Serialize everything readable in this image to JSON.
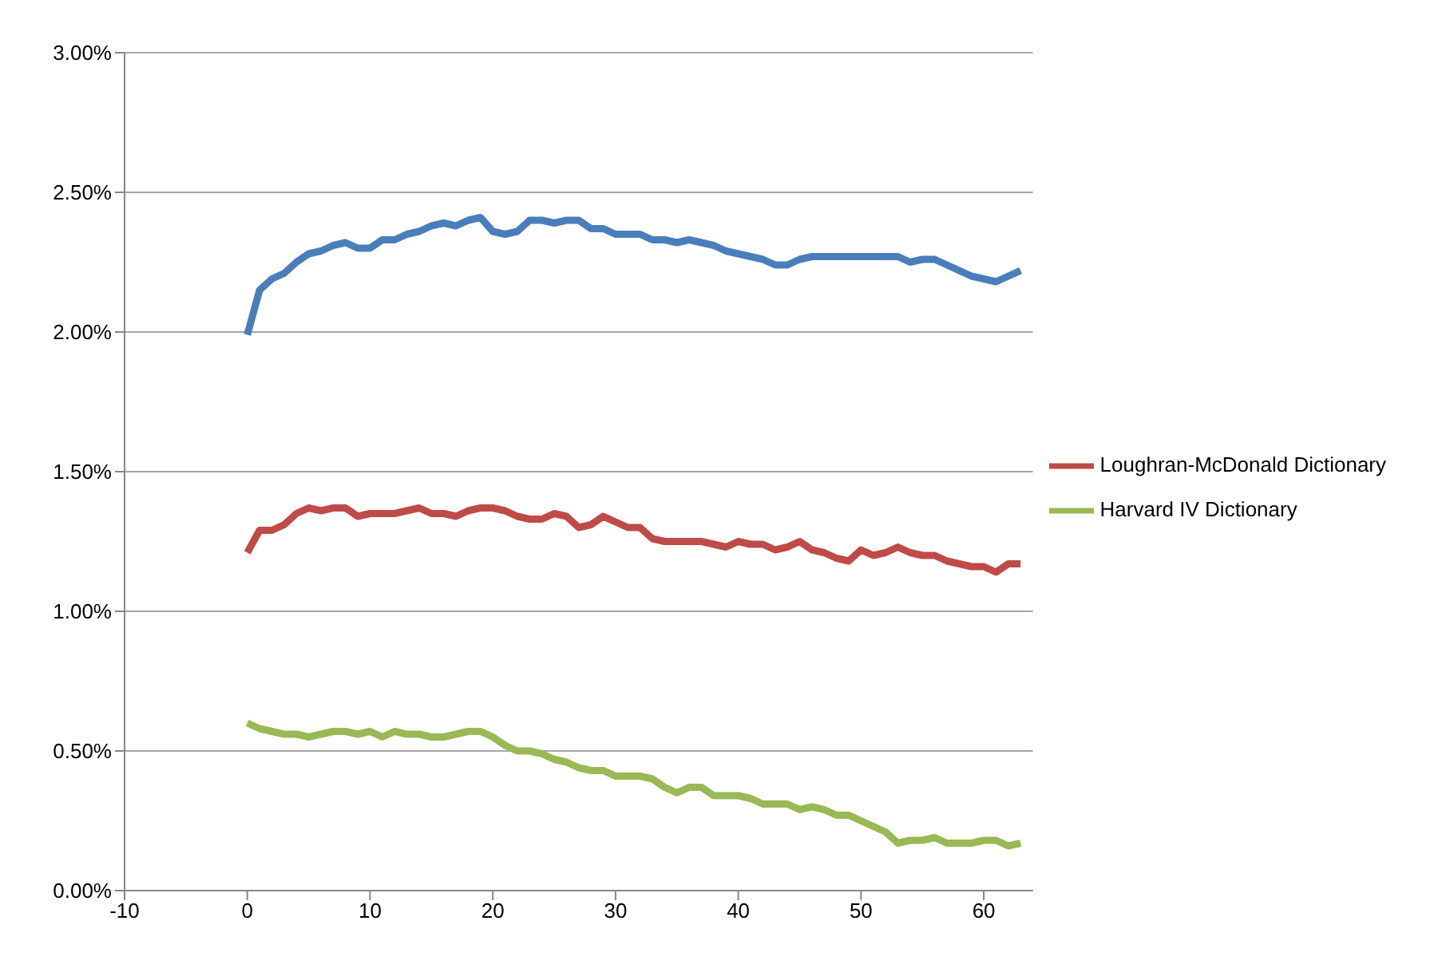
{
  "chart_data": {
    "type": "line",
    "x": [
      0,
      1,
      2,
      3,
      4,
      5,
      6,
      7,
      8,
      9,
      10,
      11,
      12,
      13,
      14,
      15,
      16,
      17,
      18,
      19,
      20,
      21,
      22,
      23,
      24,
      25,
      26,
      27,
      28,
      29,
      30,
      31,
      32,
      33,
      34,
      35,
      36,
      37,
      38,
      39,
      40,
      41,
      42,
      43,
      44,
      45,
      46,
      47,
      48,
      49,
      50,
      51,
      52,
      53,
      54,
      55,
      56,
      57,
      58,
      59,
      60,
      61,
      62,
      63
    ],
    "series": [
      {
        "color": "#4a7ebb",
        "values": [
          1.99,
          2.15,
          2.19,
          2.21,
          2.25,
          2.28,
          2.29,
          2.31,
          2.32,
          2.3,
          2.3,
          2.33,
          2.33,
          2.35,
          2.36,
          2.38,
          2.39,
          2.38,
          2.4,
          2.41,
          2.36,
          2.35,
          2.36,
          2.4,
          2.4,
          2.39,
          2.4,
          2.4,
          2.37,
          2.37,
          2.35,
          2.35,
          2.35,
          2.33,
          2.33,
          2.32,
          2.33,
          2.32,
          2.31,
          2.29,
          2.28,
          2.27,
          2.26,
          2.24,
          2.24,
          2.26,
          2.27,
          2.27,
          2.27,
          2.27,
          2.27,
          2.27,
          2.27,
          2.27,
          2.25,
          2.26,
          2.26,
          2.24,
          2.22,
          2.2,
          2.19,
          2.18,
          2.2,
          2.22
        ]
      },
      {
        "name": "Loughran-McDonald Dictionary",
        "color": "#be4b48",
        "values": [
          1.21,
          1.29,
          1.29,
          1.31,
          1.35,
          1.37,
          1.36,
          1.37,
          1.37,
          1.34,
          1.35,
          1.35,
          1.35,
          1.36,
          1.37,
          1.35,
          1.35,
          1.34,
          1.36,
          1.37,
          1.37,
          1.36,
          1.34,
          1.33,
          1.33,
          1.35,
          1.34,
          1.3,
          1.31,
          1.34,
          1.32,
          1.3,
          1.3,
          1.26,
          1.25,
          1.25,
          1.25,
          1.25,
          1.24,
          1.23,
          1.25,
          1.24,
          1.24,
          1.22,
          1.23,
          1.25,
          1.22,
          1.21,
          1.19,
          1.18,
          1.22,
          1.2,
          1.21,
          1.23,
          1.21,
          1.2,
          1.2,
          1.18,
          1.17,
          1.16,
          1.16,
          1.14,
          1.17,
          1.17
        ]
      },
      {
        "name": "Harvard IV Dictionary",
        "color": "#98b954",
        "values": [
          0.6,
          0.58,
          0.57,
          0.56,
          0.56,
          0.55,
          0.56,
          0.57,
          0.57,
          0.56,
          0.57,
          0.55,
          0.57,
          0.56,
          0.56,
          0.55,
          0.55,
          0.56,
          0.57,
          0.57,
          0.55,
          0.52,
          0.5,
          0.5,
          0.49,
          0.47,
          0.46,
          0.44,
          0.43,
          0.43,
          0.41,
          0.41,
          0.41,
          0.4,
          0.37,
          0.35,
          0.37,
          0.37,
          0.34,
          0.34,
          0.34,
          0.33,
          0.31,
          0.31,
          0.31,
          0.29,
          0.3,
          0.29,
          0.27,
          0.27,
          0.25,
          0.23,
          0.21,
          0.17,
          0.18,
          0.18,
          0.19,
          0.17,
          0.17,
          0.17,
          0.18,
          0.18,
          0.16,
          0.17
        ]
      }
    ],
    "xlim": [
      -10,
      64
    ],
    "xticks": [
      -10,
      0,
      10,
      20,
      30,
      40,
      50,
      60
    ],
    "ylim": [
      0,
      3
    ],
    "yticks": [
      {
        "value": 0,
        "label": "0.00%"
      },
      {
        "value": 0.5,
        "label": "0.50%"
      },
      {
        "value": 1,
        "label": "1.00%"
      },
      {
        "value": 1.5,
        "label": "1.50%"
      },
      {
        "value": 2,
        "label": "2.00%"
      },
      {
        "value": 2.5,
        "label": "2.50%"
      },
      {
        "value": 3,
        "label": "3.00%"
      }
    ],
    "grid": "y",
    "legend": "right",
    "marker": "none",
    "line_style": "solid"
  }
}
